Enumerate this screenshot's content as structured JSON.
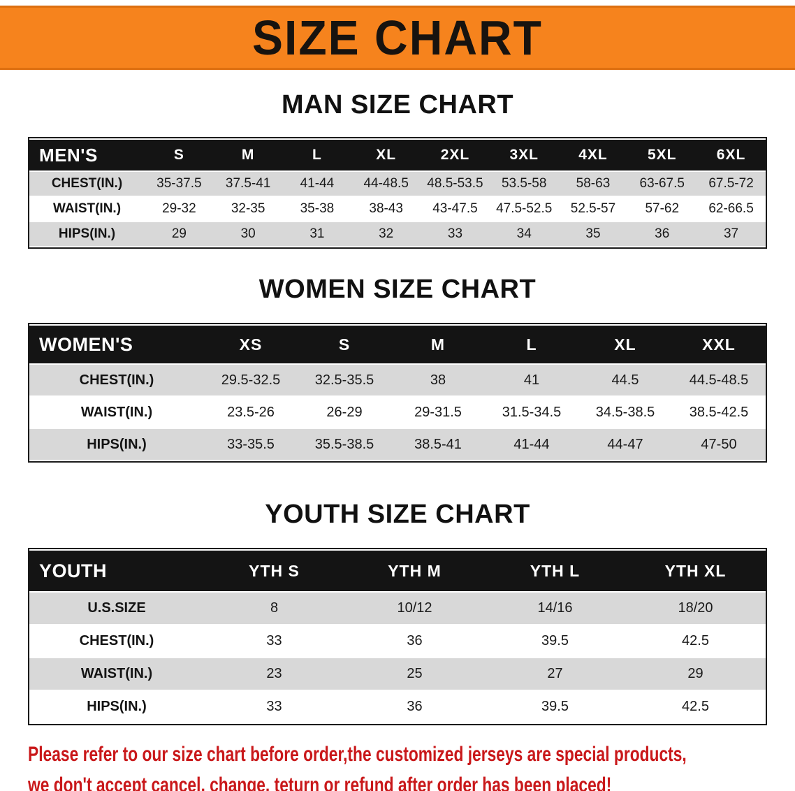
{
  "banner": {
    "title": "SIZE CHART"
  },
  "sections": [
    {
      "id": "men",
      "heading": "MAN SIZE CHART",
      "table": {
        "corner_label": "MEN'S",
        "columns": [
          "S",
          "M",
          "L",
          "XL",
          "2XL",
          "3XL",
          "4XL",
          "5XL",
          "6XL"
        ],
        "rows": [
          {
            "label": "CHEST(IN.)",
            "values": [
              "35-37.5",
              "37.5-41",
              "41-44",
              "44-48.5",
              "48.5-53.5",
              "53.5-58",
              "58-63",
              "63-67.5",
              "67.5-72"
            ]
          },
          {
            "label": "WAIST(IN.)",
            "values": [
              "29-32",
              "32-35",
              "35-38",
              "38-43",
              "43-47.5",
              "47.5-52.5",
              "52.5-57",
              "57-62",
              "62-66.5"
            ]
          },
          {
            "label": "HIPS(IN.)",
            "values": [
              "29",
              "30",
              "31",
              "32",
              "33",
              "34",
              "35",
              "36",
              "37"
            ]
          }
        ]
      }
    },
    {
      "id": "women",
      "heading": "WOMEN SIZE CHART",
      "table": {
        "corner_label": "WOMEN'S",
        "columns": [
          "XS",
          "S",
          "M",
          "L",
          "XL",
          "XXL"
        ],
        "rows": [
          {
            "label": "CHEST(IN.)",
            "values": [
              "29.5-32.5",
              "32.5-35.5",
              "38",
              "41",
              "44.5",
              "44.5-48.5"
            ]
          },
          {
            "label": "WAIST(IN.)",
            "values": [
              "23.5-26",
              "26-29",
              "29-31.5",
              "31.5-34.5",
              "34.5-38.5",
              "38.5-42.5"
            ]
          },
          {
            "label": "HIPS(IN.)",
            "values": [
              "33-35.5",
              "35.5-38.5",
              "38.5-41",
              "41-44",
              "44-47",
              "47-50"
            ]
          }
        ]
      }
    },
    {
      "id": "youth",
      "heading": "YOUTH SIZE CHART",
      "table": {
        "corner_label": "YOUTH",
        "columns": [
          "YTH S",
          "YTH M",
          "YTH L",
          "YTH XL"
        ],
        "rows": [
          {
            "label": "U.S.SIZE",
            "values": [
              "8",
              "10/12",
              "14/16",
              "18/20"
            ]
          },
          {
            "label": "CHEST(IN.)",
            "values": [
              "33",
              "36",
              "39.5",
              "42.5"
            ]
          },
          {
            "label": "WAIST(IN.)",
            "values": [
              "23",
              "25",
              "27",
              "29"
            ]
          },
          {
            "label": "HIPS(IN.)",
            "values": [
              "33",
              "36",
              "39.5",
              "42.5"
            ]
          }
        ]
      }
    }
  ],
  "disclaimer": {
    "line1": "Please refer to our size chart before order,the customized jerseys are special products,",
    "line2": "we don't accept cancel, change, teturn or refund after order has been placed!"
  },
  "colors": {
    "banner_bg": "#F6831D",
    "table_header_bg": "#141414",
    "row_alt_bg": "#d8d8d8",
    "disclaimer_text": "#c9181a"
  }
}
